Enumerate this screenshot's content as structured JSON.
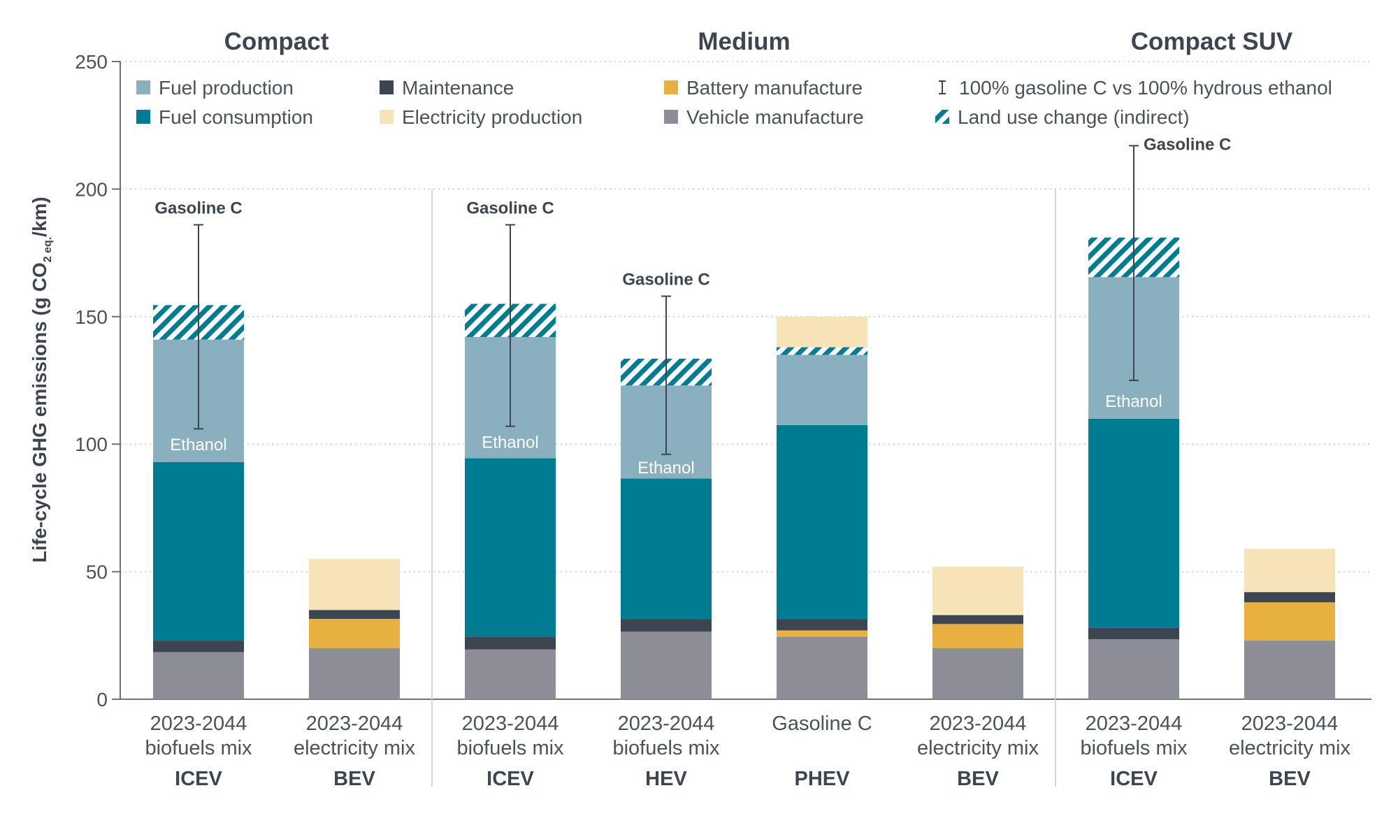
{
  "chart_data": {
    "type": "bar",
    "stacked": true,
    "ylabel_main": "Life-cycle GHG emissions (g CO",
    "ylabel_sub": "2 eq.",
    "ylabel_end": "/km)",
    "ylim": [
      0,
      250
    ],
    "yticks": [
      0,
      50,
      100,
      150,
      200,
      250
    ],
    "grid": true,
    "legend_position": "top",
    "groups": [
      {
        "name": "Compact",
        "bars": [
          0,
          1
        ]
      },
      {
        "name": "Medium",
        "bars": [
          2,
          3,
          4,
          5
        ]
      },
      {
        "name": "Compact SUV",
        "bars": [
          6,
          7
        ]
      }
    ],
    "components": [
      {
        "key": "vehicle_manufacture",
        "name": "Vehicle manufacture",
        "color": "#8c8d96"
      },
      {
        "key": "battery_manufacture",
        "name": "Battery manufacture",
        "color": "#e8b040"
      },
      {
        "key": "maintenance",
        "name": "Maintenance",
        "color": "#3d4650"
      },
      {
        "key": "fuel_consumption",
        "name": "Fuel consumption",
        "color": "#007c92"
      },
      {
        "key": "fuel_production",
        "name": "Fuel production",
        "color": "#8aafbf"
      },
      {
        "key": "land_use_change",
        "name": "Land use change (indirect)",
        "color": "#007c92",
        "hatched": true
      },
      {
        "key": "electricity_production",
        "name": "Electricity production",
        "color": "#f7e3b8"
      }
    ],
    "legend_order": [
      [
        "fuel_production",
        "maintenance",
        "battery_manufacture",
        "errorbar"
      ],
      [
        "fuel_consumption",
        "electricity_production",
        "vehicle_manufacture",
        "land_use_change"
      ]
    ],
    "errorbar_legend": "100% gasoline C vs 100% hydrous ethanol",
    "bars": [
      {
        "category_line1": "2023-2044",
        "category_line2": "biofuels mix",
        "vehicle": "ICEV",
        "values": {
          "vehicle_manufacture": 18.5,
          "battery_manufacture": 0,
          "maintenance": 4.5,
          "fuel_consumption": 70,
          "fuel_production": 48,
          "land_use_change": 13.5,
          "electricity_production": 0
        },
        "inner_label": "Ethanol",
        "inner_label_y": 100,
        "errorbar": {
          "low": 106,
          "high": 186,
          "label": "Gasoline C"
        }
      },
      {
        "category_line1": "2023-2044",
        "category_line2": "electricity mix",
        "vehicle": "BEV",
        "values": {
          "vehicle_manufacture": 20,
          "battery_manufacture": 11.5,
          "maintenance": 3.5,
          "fuel_consumption": 0,
          "fuel_production": 0,
          "land_use_change": 0,
          "electricity_production": 20
        },
        "inner_label": "",
        "errorbar": null
      },
      {
        "category_line1": "2023-2044",
        "category_line2": "biofuels mix",
        "vehicle": "ICEV",
        "values": {
          "vehicle_manufacture": 19.5,
          "battery_manufacture": 0,
          "maintenance": 5,
          "fuel_consumption": 70,
          "fuel_production": 47.5,
          "land_use_change": 13,
          "electricity_production": 0
        },
        "inner_label": "Ethanol",
        "inner_label_y": 101,
        "errorbar": {
          "low": 107,
          "high": 186,
          "label": "Gasoline C"
        }
      },
      {
        "category_line1": "2023-2044",
        "category_line2": "biofuels mix",
        "vehicle": "HEV",
        "values": {
          "vehicle_manufacture": 26.5,
          "battery_manufacture": 0,
          "maintenance": 5,
          "fuel_consumption": 55,
          "fuel_production": 36.5,
          "land_use_change": 10.5,
          "electricity_production": 0
        },
        "inner_label": "Ethanol",
        "inner_label_y": 91,
        "errorbar": {
          "low": 96,
          "high": 158,
          "label": "Gasoline C"
        }
      },
      {
        "category_line1": "Gasoline C",
        "category_line2": "",
        "vehicle": "PHEV",
        "values": {
          "vehicle_manufacture": 24.5,
          "battery_manufacture": 2.5,
          "maintenance": 4.5,
          "fuel_consumption": 76,
          "fuel_production": 27.5,
          "land_use_change": 3,
          "electricity_production": 12
        },
        "inner_label": "",
        "errorbar": null
      },
      {
        "category_line1": "2023-2044",
        "category_line2": "electricity mix",
        "vehicle": "BEV",
        "values": {
          "vehicle_manufacture": 20,
          "battery_manufacture": 9.5,
          "maintenance": 3.5,
          "fuel_consumption": 0,
          "fuel_production": 0,
          "land_use_change": 0,
          "electricity_production": 19
        },
        "inner_label": "",
        "errorbar": null
      },
      {
        "category_line1": "2023-2044",
        "category_line2": "biofuels mix",
        "vehicle": "ICEV",
        "values": {
          "vehicle_manufacture": 23.5,
          "battery_manufacture": 0,
          "maintenance": 4.5,
          "fuel_consumption": 82,
          "fuel_production": 55.5,
          "land_use_change": 15.5,
          "electricity_production": 0
        },
        "inner_label": "Ethanol",
        "inner_label_y": 117,
        "errorbar": {
          "low": 125,
          "high": 217,
          "label": "Gasoline C"
        }
      },
      {
        "category_line1": "2023-2044",
        "category_line2": "electricity mix",
        "vehicle": "BEV",
        "values": {
          "vehicle_manufacture": 23,
          "battery_manufacture": 15,
          "maintenance": 4,
          "fuel_consumption": 0,
          "fuel_production": 0,
          "land_use_change": 0,
          "electricity_production": 17
        },
        "inner_label": "",
        "errorbar": null
      }
    ]
  }
}
